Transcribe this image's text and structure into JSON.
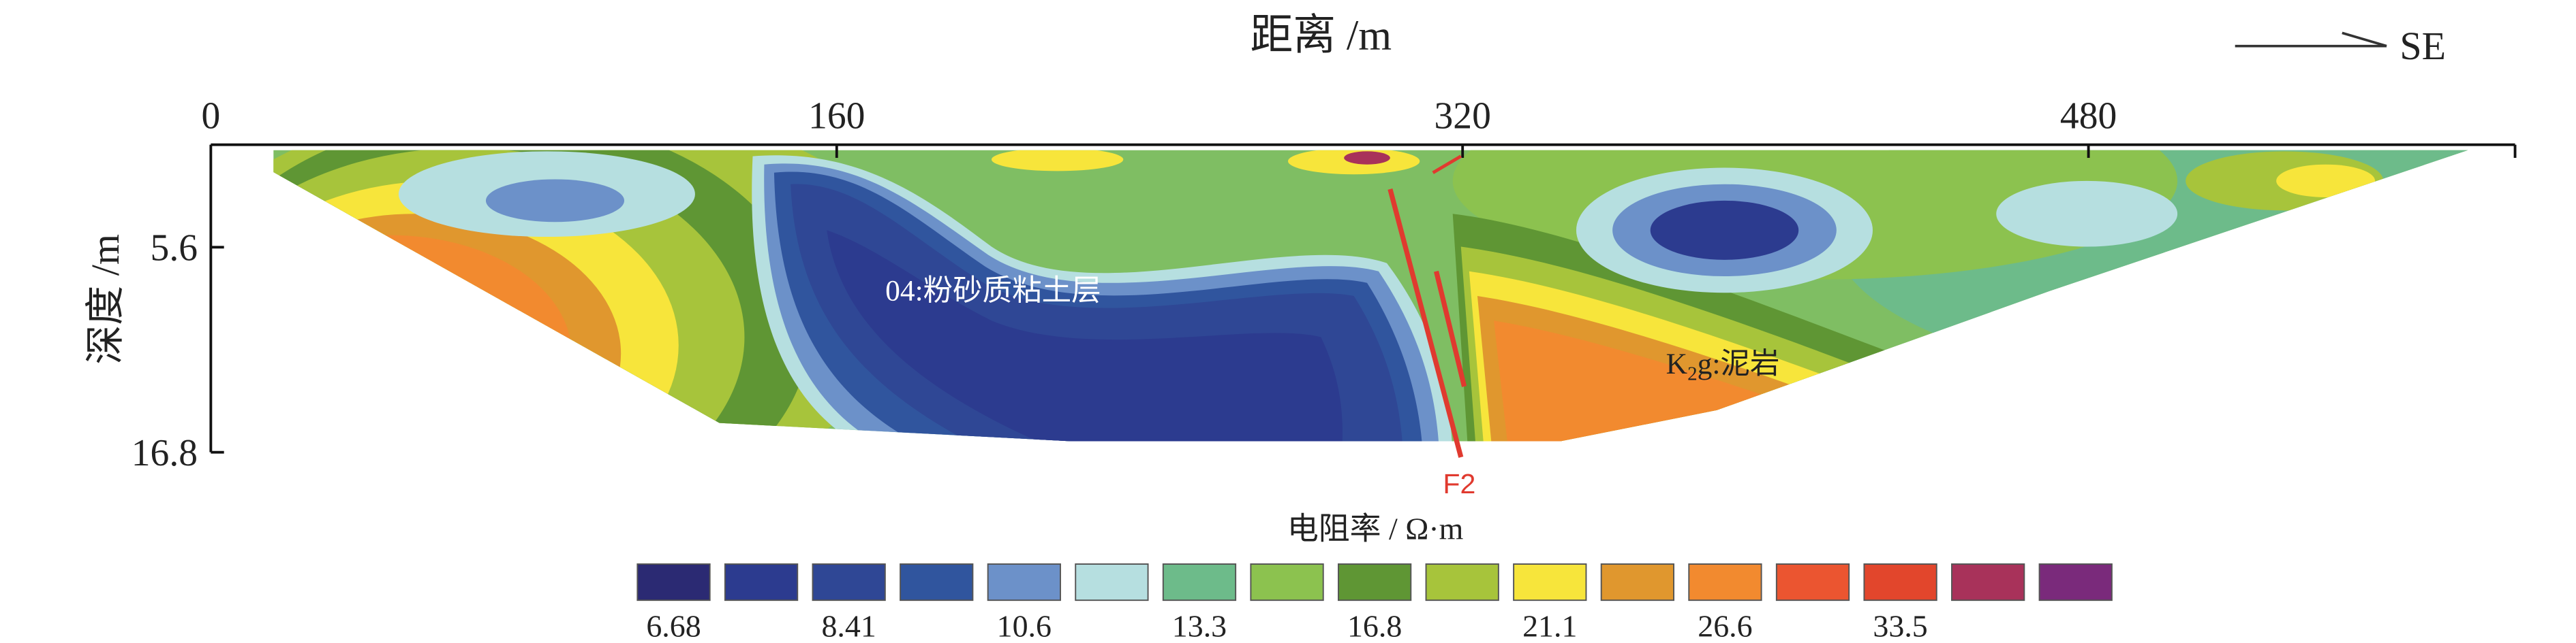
{
  "chart_data": {
    "type": "heatmap",
    "title": "",
    "xlabel": "距离 /m",
    "ylabel": "深度 /m",
    "x_ticks": [
      0,
      160,
      320,
      480
    ],
    "y_ticks": [
      5.6,
      16.8
    ],
    "xlim": [
      0,
      593
    ],
    "ylim": [
      0,
      16.8
    ],
    "direction_label": "SE",
    "fault_label": "F2",
    "annotations": [
      {
        "text": "04:粉砂质粘土层",
        "x": 200,
        "y": 8.5
      },
      {
        "prefix": "K",
        "subscript": "2",
        "suffix": "g:泥岩",
        "x": 372,
        "y": 12.5
      }
    ],
    "colorbar": {
      "label": "电阻率 / Ω·m",
      "tick_labels": [
        "6.68",
        "8.41",
        "10.6",
        "13.3",
        "16.8",
        "21.1",
        "26.6",
        "33.5"
      ],
      "colors": [
        "#2b2a73",
        "#2c3b8f",
        "#2f4795",
        "#30559e",
        "#6c91c9",
        "#b6dfe0",
        "#6dbb8a",
        "#8cc24f",
        "#5f9634",
        "#a7c43b",
        "#f7e53b",
        "#e0972e",
        "#f28a2f",
        "#eb5530",
        "#e2462c",
        "#a8325a",
        "#7a2a7b"
      ]
    },
    "profile_outline": [
      [
        16,
        0.3
      ],
      [
        577,
        0.3
      ],
      [
        470,
        8.0
      ],
      [
        385,
        14.5
      ],
      [
        345,
        16.2
      ],
      [
        220,
        16.2
      ],
      [
        130,
        15.2
      ],
      [
        16,
        1.5
      ]
    ]
  }
}
